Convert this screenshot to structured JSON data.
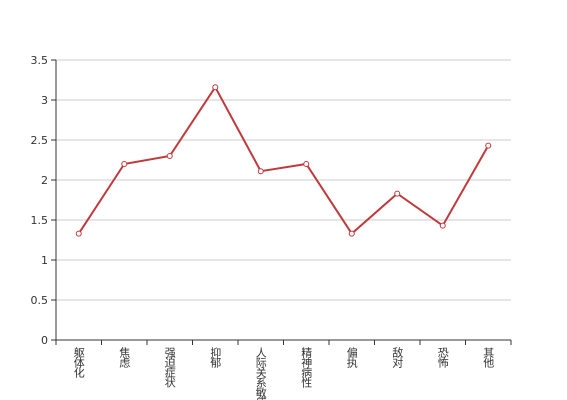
{
  "chart_data": {
    "type": "line",
    "categories": [
      "躯体化",
      "焦虑",
      "强迫症状",
      "抑郁",
      "人际关系敏感",
      "精神病性",
      "偏执",
      "敌对",
      "恐怖",
      "其他"
    ],
    "series": [
      {
        "color": "#c0393b",
        "values": [
          1.33,
          2.2,
          2.3,
          3.16,
          2.11,
          2.2,
          1.33,
          1.83,
          1.43,
          2.43
        ]
      }
    ],
    "ylim": [
      0,
      3.5
    ],
    "yticks": [
      0,
      0.5,
      1,
      1.5,
      2,
      2.5,
      3,
      3.5
    ],
    "grid": true
  }
}
